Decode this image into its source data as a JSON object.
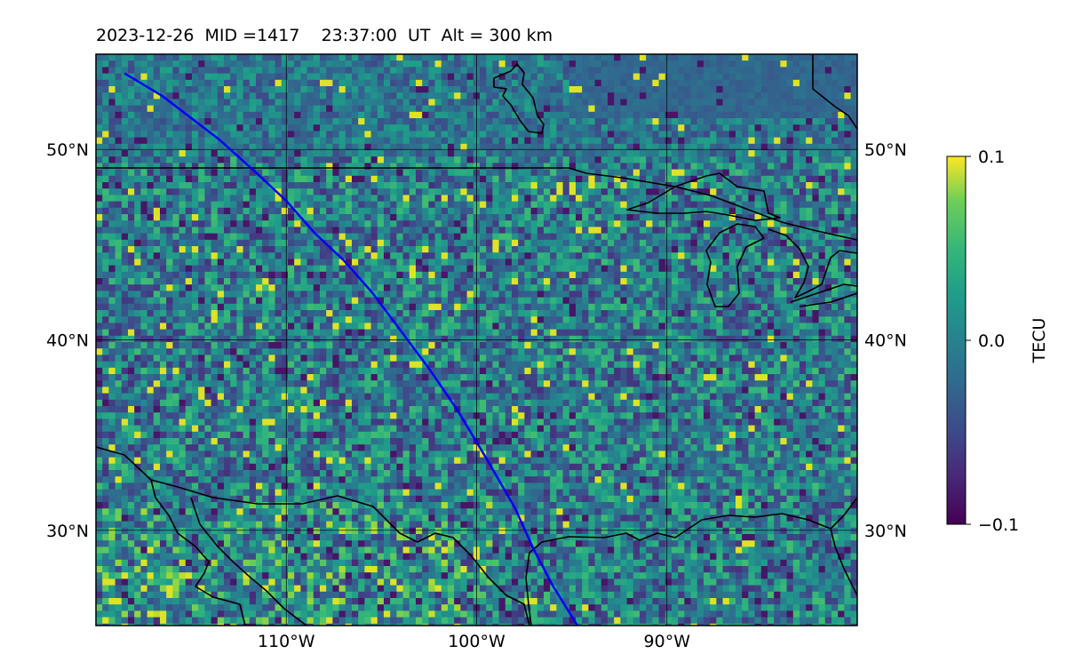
{
  "title": "2023-12-26  MID =1417    23:37:00  UT  Alt = 300 km",
  "map": {
    "lon_range": [
      -120,
      -80
    ],
    "lat_range": [
      25,
      55
    ],
    "lat_ticks": [
      {
        "value": 30,
        "label": "30°N"
      },
      {
        "value": 40,
        "label": "40°N"
      },
      {
        "value": 50,
        "label": "50°N"
      }
    ],
    "lon_ticks": [
      {
        "value": -110,
        "label": "110°W"
      },
      {
        "value": -100,
        "label": "100°W"
      },
      {
        "value": -90,
        "label": "90°W"
      }
    ],
    "grid": true,
    "track_color": "#0000ff",
    "coast_color": "#000000"
  },
  "colorbar": {
    "label": "TECU",
    "min": -0.1,
    "max": 0.1,
    "ticks": [
      {
        "value": 0.1,
        "label": "0.1"
      },
      {
        "value": 0.0,
        "label": "0.0"
      },
      {
        "value": -0.1,
        "label": "−0.1"
      }
    ],
    "colormap": "viridis"
  },
  "satellite_track": [
    [
      -118.5,
      54
    ],
    [
      -116.5,
      52.8
    ],
    [
      -113.5,
      50.5
    ],
    [
      -111.5,
      48.7
    ],
    [
      -110,
      47.3
    ],
    [
      -108.5,
      45.6
    ],
    [
      -107,
      44.2
    ],
    [
      -105.5,
      42.5
    ],
    [
      -104,
      40.5
    ],
    [
      -102.5,
      38.5
    ],
    [
      -101,
      36.3
    ],
    [
      -99.5,
      33.8
    ],
    [
      -98,
      31.2
    ],
    [
      -97,
      29
    ],
    [
      -96,
      27.1
    ],
    [
      -94.7,
      25
    ]
  ]
}
